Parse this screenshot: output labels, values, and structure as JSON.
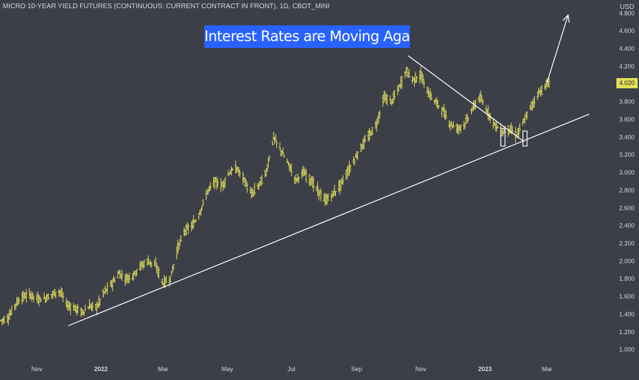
{
  "header": {
    "symbol_title": "MICRO 10-YEAR YIELD FUTURES (CONTINUOUS: CURRENT CONTRACT IN FRONT), 1D, CBOT_MINI"
  },
  "banner": {
    "text": "Interest Rates are Moving Again"
  },
  "price_axis": {
    "unit": "USD"
  },
  "last_price": {
    "label": "4.020",
    "value": 4.02
  },
  "colors": {
    "background": "#3c3e48",
    "bar": "#e2e05a",
    "trendline": "#ffffff",
    "banner": "#2962ff",
    "axis_text": "#d7d8db"
  },
  "chart_data": {
    "type": "bar",
    "style": "ohlc-bars",
    "ylim": [
      0.85,
      4.95
    ],
    "y_ticks": [
      "1.000",
      "1.200",
      "1.400",
      "1.600",
      "1.800",
      "2.000",
      "2.200",
      "2.400",
      "2.600",
      "2.800",
      "3.000",
      "3.200",
      "3.400",
      "3.600",
      "3.800",
      "4.000",
      "4.200",
      "4.400",
      "4.600",
      "4.800"
    ],
    "x_ticks": [
      "Nov",
      "2022",
      "Mar",
      "May",
      "Jul",
      "Sep",
      "Nov",
      "2023",
      "Mar"
    ],
    "x_range": [
      "2021-09-27",
      "2023-04-30"
    ],
    "grid": false,
    "series_points": [
      [
        "2021-09-28",
        1.33
      ],
      [
        "2021-10-05",
        1.36
      ],
      [
        "2021-10-12",
        1.52
      ],
      [
        "2021-10-19",
        1.6
      ],
      [
        "2021-10-26",
        1.62
      ],
      [
        "2021-11-02",
        1.57
      ],
      [
        "2021-11-09",
        1.58
      ],
      [
        "2021-11-16",
        1.63
      ],
      [
        "2021-11-23",
        1.66
      ],
      [
        "2021-11-30",
        1.5
      ],
      [
        "2021-12-07",
        1.47
      ],
      [
        "2021-12-14",
        1.42
      ],
      [
        "2021-12-21",
        1.49
      ],
      [
        "2021-12-28",
        1.48
      ],
      [
        "2022-01-04",
        1.65
      ],
      [
        "2022-01-11",
        1.74
      ],
      [
        "2022-01-18",
        1.86
      ],
      [
        "2022-01-25",
        1.8
      ],
      [
        "2022-02-01",
        1.85
      ],
      [
        "2022-02-08",
        1.95
      ],
      [
        "2022-02-15",
        2.0
      ],
      [
        "2022-02-22",
        1.95
      ],
      [
        "2022-03-01",
        1.75
      ],
      [
        "2022-03-08",
        1.8
      ],
      [
        "2022-03-15",
        2.15
      ],
      [
        "2022-03-22",
        2.35
      ],
      [
        "2022-03-29",
        2.4
      ],
      [
        "2022-04-05",
        2.55
      ],
      [
        "2022-04-12",
        2.78
      ],
      [
        "2022-04-19",
        2.9
      ],
      [
        "2022-04-26",
        2.85
      ],
      [
        "2022-05-03",
        3.0
      ],
      [
        "2022-05-10",
        3.05
      ],
      [
        "2022-05-17",
        2.92
      ],
      [
        "2022-05-24",
        2.75
      ],
      [
        "2022-05-31",
        2.86
      ],
      [
        "2022-06-07",
        3.0
      ],
      [
        "2022-06-14",
        3.4
      ],
      [
        "2022-06-21",
        3.25
      ],
      [
        "2022-06-28",
        3.1
      ],
      [
        "2022-07-05",
        2.92
      ],
      [
        "2022-07-12",
        3.0
      ],
      [
        "2022-07-19",
        2.92
      ],
      [
        "2022-07-26",
        2.8
      ],
      [
        "2022-08-02",
        2.68
      ],
      [
        "2022-08-09",
        2.75
      ],
      [
        "2022-08-16",
        2.85
      ],
      [
        "2022-08-23",
        3.0
      ],
      [
        "2022-08-30",
        3.15
      ],
      [
        "2022-09-06",
        3.3
      ],
      [
        "2022-09-13",
        3.42
      ],
      [
        "2022-09-20",
        3.55
      ],
      [
        "2022-09-27",
        3.85
      ],
      [
        "2022-10-04",
        3.8
      ],
      [
        "2022-10-11",
        3.95
      ],
      [
        "2022-10-18",
        4.15
      ],
      [
        "2022-10-25",
        4.05
      ],
      [
        "2022-11-01",
        4.1
      ],
      [
        "2022-11-08",
        3.9
      ],
      [
        "2022-11-15",
        3.8
      ],
      [
        "2022-11-22",
        3.7
      ],
      [
        "2022-11-29",
        3.55
      ],
      [
        "2022-12-06",
        3.5
      ],
      [
        "2022-12-13",
        3.55
      ],
      [
        "2022-12-20",
        3.72
      ],
      [
        "2022-12-27",
        3.85
      ],
      [
        "2023-01-03",
        3.7
      ],
      [
        "2023-01-10",
        3.55
      ],
      [
        "2023-01-17",
        3.45
      ],
      [
        "2023-01-24",
        3.5
      ],
      [
        "2023-01-31",
        3.42
      ],
      [
        "2023-02-07",
        3.58
      ],
      [
        "2023-02-14",
        3.75
      ],
      [
        "2023-02-21",
        3.9
      ],
      [
        "2023-02-28",
        3.98
      ],
      [
        "2023-03-03",
        4.02
      ]
    ],
    "annotations": [
      {
        "type": "trendline",
        "name": "rising-support",
        "from": [
          "2021-12-01",
          1.27
        ],
        "to": [
          "2023-04-10",
          3.66
        ]
      },
      {
        "type": "trendline",
        "name": "falling-line",
        "from": [
          "2022-10-20",
          4.32
        ],
        "to": [
          "2023-02-07",
          3.35
        ]
      },
      {
        "type": "arrow",
        "name": "projection",
        "from": [
          "2023-03-01",
          4.02
        ],
        "to": [
          "2023-03-21",
          4.78
        ]
      },
      {
        "type": "box",
        "name": "low-marker-1",
        "from": [
          "2023-01-16",
          3.3
        ],
        "to": [
          "2023-01-20",
          3.5
        ]
      },
      {
        "type": "box",
        "name": "low-marker-2",
        "from": [
          "2023-02-06",
          3.3
        ],
        "to": [
          "2023-02-10",
          3.47
        ]
      }
    ]
  }
}
